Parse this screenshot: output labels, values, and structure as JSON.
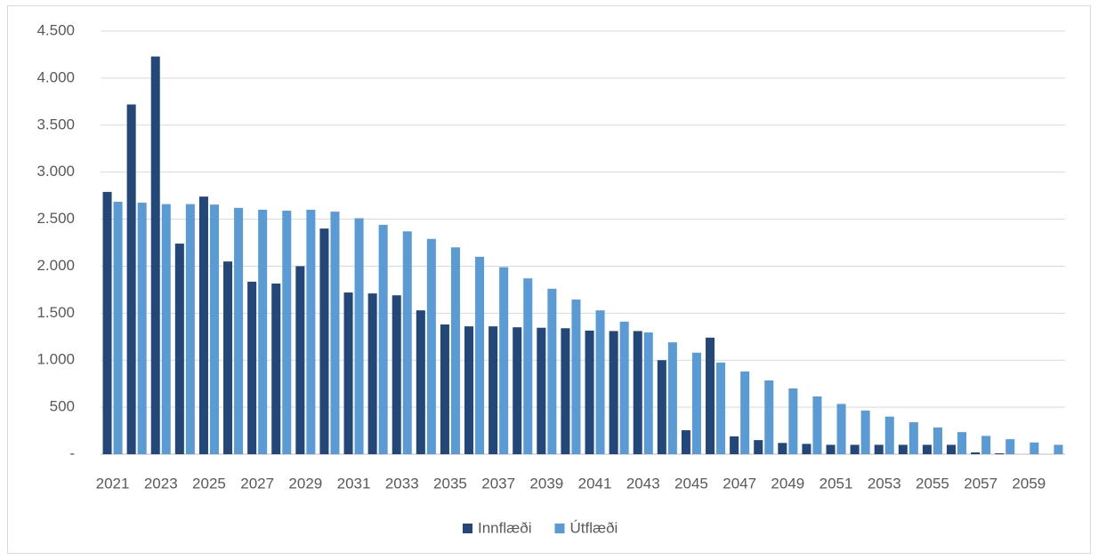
{
  "chart_data": {
    "type": "bar",
    "categories": [
      "2021",
      null,
      "2023",
      null,
      "2025",
      null,
      "2027",
      null,
      "2029",
      null,
      "2031",
      null,
      "2033",
      null,
      "2035",
      null,
      "2037",
      null,
      "2039",
      null,
      "2041",
      null,
      "2043",
      null,
      "2045",
      null,
      "2047",
      null,
      "2049",
      null,
      "2051",
      null,
      "2053",
      null,
      "2055",
      null,
      "2057",
      null,
      "2059",
      null
    ],
    "series": [
      {
        "name": "Innflæði",
        "color": "#24477a",
        "values": [
          2790,
          3720,
          4230,
          2240,
          2740,
          2050,
          1835,
          1815,
          2000,
          2400,
          1720,
          1710,
          1690,
          1530,
          1380,
          1360,
          1360,
          1350,
          1345,
          1340,
          1315,
          1310,
          1310,
          1000,
          255,
          1240,
          190,
          150,
          120,
          110,
          100,
          100,
          100,
          100,
          100,
          100,
          20,
          10,
          0,
          0
        ]
      },
      {
        "name": "Útflæði",
        "color": "#5b9bd5",
        "values": [
          2685,
          2675,
          2660,
          2660,
          2655,
          2620,
          2600,
          2590,
          2600,
          2580,
          2510,
          2440,
          2370,
          2290,
          2200,
          2100,
          1990,
          1870,
          1760,
          1645,
          1530,
          1410,
          1295,
          1190,
          1080,
          975,
          880,
          785,
          700,
          615,
          535,
          465,
          400,
          340,
          285,
          235,
          195,
          160,
          125,
          100
        ]
      }
    ],
    "ylim": [
      0,
      4500
    ],
    "yticks": [
      {
        "value": 0,
        "label": "-"
      },
      500,
      {
        "value": 1000,
        "label": "1.000"
      },
      {
        "value": 1500,
        "label": "1.500"
      },
      {
        "value": 2000,
        "label": "2.000"
      },
      {
        "value": 2500,
        "label": "2.500"
      },
      {
        "value": 3000,
        "label": "3.000"
      },
      {
        "value": 3500,
        "label": "3.500"
      },
      {
        "value": 4000,
        "label": "4.000"
      },
      {
        "value": 4500,
        "label": "4.500"
      }
    ],
    "grid": true,
    "legend": "bottom"
  }
}
